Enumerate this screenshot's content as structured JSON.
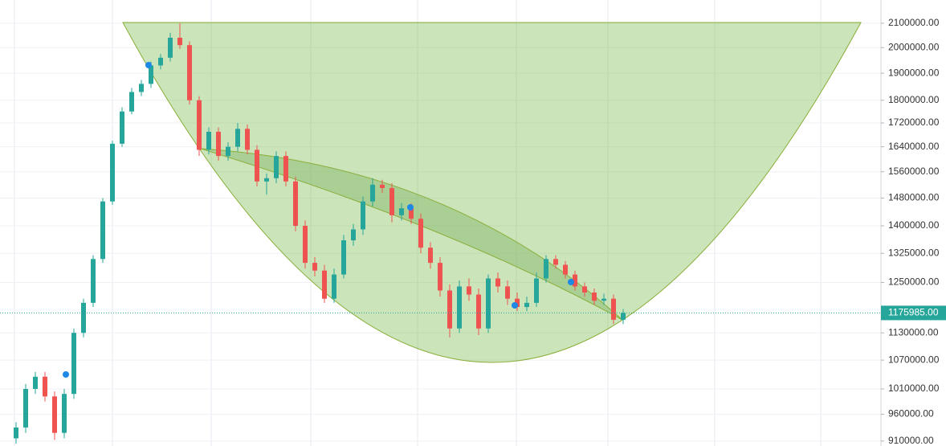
{
  "chart_data": {
    "type": "candlestick",
    "log_scale": true,
    "grid": true,
    "up_color": "#26a69a",
    "down_color": "#ef5350",
    "ylim": [
      901000,
      2200000
    ],
    "yticks": [
      {
        "value": 910000,
        "label": "910000.00"
      },
      {
        "value": 960000,
        "label": "960000.00"
      },
      {
        "value": 1010000,
        "label": "1010000.00"
      },
      {
        "value": 1070000,
        "label": "1070000.00"
      },
      {
        "value": 1130000,
        "label": "1130000.00"
      },
      {
        "value": 1250000,
        "label": "1250000.00"
      },
      {
        "value": 1325000,
        "label": "1325000.00"
      },
      {
        "value": 1400000,
        "label": "1400000.00"
      },
      {
        "value": 1480000,
        "label": "1480000.00"
      },
      {
        "value": 1560000,
        "label": "1560000.00"
      },
      {
        "value": 1640000,
        "label": "1640000.00"
      },
      {
        "value": 1720000,
        "label": "1720000.00"
      },
      {
        "value": 1800000,
        "label": "1800000.00"
      },
      {
        "value": 1900000,
        "label": "1900000.00"
      },
      {
        "value": 2000000,
        "label": "2000000.00"
      },
      {
        "value": 2100000,
        "label": "2100000.00"
      }
    ],
    "last_value": {
      "value": 1175985,
      "label": "1175985.00"
    },
    "categories": [
      null,
      null,
      null,
      null,
      null,
      null,
      null,
      null,
      null,
      null,
      null,
      null,
      null,
      null,
      null,
      null,
      null,
      null,
      null,
      null,
      null,
      null,
      null,
      null,
      null,
      null,
      null,
      null,
      null,
      null,
      null,
      null,
      null,
      null,
      null,
      null,
      null,
      null,
      null,
      null,
      null,
      null,
      null,
      null,
      null,
      null,
      null,
      null,
      null,
      null,
      null,
      null,
      null,
      null,
      null,
      null,
      null,
      null,
      null,
      null,
      null,
      null,
      null,
      null
    ],
    "open": [
      915000,
      935000,
      1010000,
      1035000,
      995000,
      925000,
      1000000,
      1130000,
      1200000,
      1310000,
      1470000,
      1650000,
      1760000,
      1830000,
      1860000,
      1930000,
      1960000,
      2040000,
      2010000,
      1800000,
      1630000,
      1690000,
      1610000,
      1640000,
      1700000,
      1630000,
      1530000,
      1540000,
      1610000,
      1530000,
      1400000,
      1300000,
      1280000,
      1210000,
      1270000,
      1360000,
      1390000,
      1470000,
      1520000,
      1510000,
      1430000,
      1450000,
      1420000,
      1340000,
      1300000,
      1230000,
      1140000,
      1240000,
      1220000,
      1140000,
      1260000,
      1240000,
      1210000,
      1190000,
      1200000,
      1260000,
      1310000,
      1295000,
      1270000,
      1240000,
      1225000,
      1205000,
      1210000,
      1160000
    ],
    "high": [
      945000,
      1020000,
      1045000,
      1045000,
      1005000,
      1010000,
      1140000,
      1210000,
      1320000,
      1480000,
      1660000,
      1775000,
      1845000,
      1875000,
      1945000,
      1975000,
      2060000,
      2100000,
      2025000,
      1815000,
      1705000,
      1705000,
      1655000,
      1720000,
      1715000,
      1645000,
      1555000,
      1625000,
      1625000,
      1545000,
      1415000,
      1315000,
      1295000,
      1285000,
      1375000,
      1405000,
      1485000,
      1540000,
      1535000,
      1525000,
      1465000,
      1465000,
      1435000,
      1355000,
      1315000,
      1245000,
      1255000,
      1260000,
      1235000,
      1270000,
      1275000,
      1255000,
      1225000,
      1215000,
      1275000,
      1320000,
      1320000,
      1305000,
      1280000,
      1250000,
      1235000,
      1222000,
      1220000,
      1185000
    ],
    "low": [
      905000,
      925000,
      1000000,
      985000,
      912000,
      915000,
      990000,
      1120000,
      1190000,
      1300000,
      1460000,
      1640000,
      1750000,
      1815000,
      1845000,
      1915000,
      1945000,
      1995000,
      1785000,
      1610000,
      1615000,
      1595000,
      1595000,
      1625000,
      1615000,
      1515000,
      1490000,
      1525000,
      1515000,
      1385000,
      1285000,
      1265000,
      1200000,
      1200000,
      1260000,
      1345000,
      1375000,
      1455000,
      1495000,
      1410000,
      1415000,
      1405000,
      1325000,
      1285000,
      1215000,
      1120000,
      1130000,
      1205000,
      1125000,
      1130000,
      1225000,
      1195000,
      1180000,
      1180000,
      1190000,
      1250000,
      1285000,
      1260000,
      1230000,
      1215000,
      1195000,
      1195000,
      1150000,
      1150000
    ],
    "close": [
      935000,
      1010000,
      1035000,
      995000,
      925000,
      1000000,
      1130000,
      1200000,
      1310000,
      1470000,
      1650000,
      1760000,
      1830000,
      1860000,
      1930000,
      1960000,
      2040000,
      2010000,
      1800000,
      1630000,
      1690000,
      1610000,
      1640000,
      1700000,
      1630000,
      1530000,
      1540000,
      1610000,
      1530000,
      1400000,
      1300000,
      1280000,
      1210000,
      1270000,
      1360000,
      1390000,
      1470000,
      1520000,
      1510000,
      1430000,
      1450000,
      1420000,
      1340000,
      1300000,
      1230000,
      1140000,
      1240000,
      1220000,
      1140000,
      1260000,
      1240000,
      1210000,
      1190000,
      1200000,
      1260000,
      1310000,
      1295000,
      1270000,
      1240000,
      1225000,
      1205000,
      1210000,
      1160000,
      1175985
    ]
  }
}
